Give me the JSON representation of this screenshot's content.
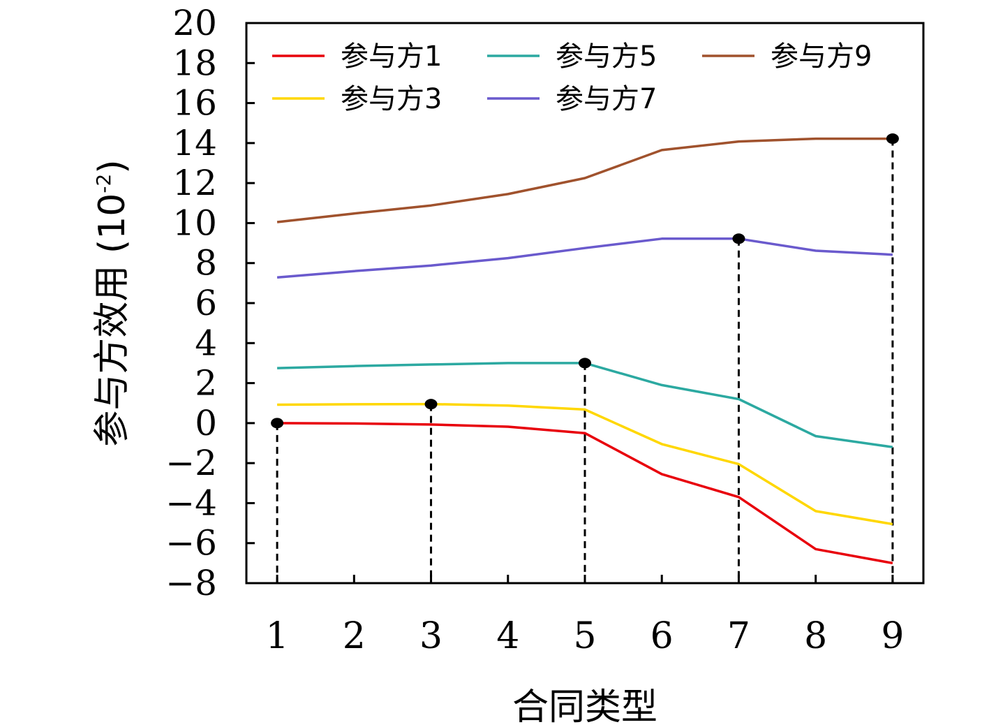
{
  "chart_data": {
    "type": "line",
    "xlabel": "合同类型",
    "ylabel": "参与方效用 (10⁻²)",
    "ylabel_main": "参与方效用 (10",
    "ylabel_exp": "-2",
    "ylabel_close": ")",
    "x": [
      1,
      2,
      3,
      4,
      5,
      6,
      7,
      8,
      9
    ],
    "xlim": [
      0.6,
      9.4
    ],
    "ylim": [
      -8,
      20
    ],
    "x_ticks": [
      "1",
      "2",
      "3",
      "4",
      "5",
      "6",
      "7",
      "8",
      "9"
    ],
    "y_ticks": [
      "−8",
      "−6",
      "−4",
      "−2",
      "0",
      "2",
      "4",
      "6",
      "8",
      "10",
      "12",
      "14",
      "16",
      "18",
      "20"
    ],
    "y_tick_values": [
      -8,
      -6,
      -4,
      -2,
      0,
      2,
      4,
      6,
      8,
      10,
      12,
      14,
      16,
      18,
      20
    ],
    "grid": false,
    "legend_position": "top",
    "series": [
      {
        "name": "参与方1",
        "color": "#e8000b",
        "values": [
          0.0,
          -0.02,
          -0.07,
          -0.18,
          -0.5,
          -2.55,
          -3.7,
          -6.3,
          -7.0
        ]
      },
      {
        "name": "参与方3",
        "color": "#ffd700",
        "values": [
          0.92,
          0.94,
          0.95,
          0.88,
          0.68,
          -1.05,
          -2.05,
          -4.4,
          -5.05
        ]
      },
      {
        "name": "参与方5",
        "color": "#2ca9a1",
        "values": [
          2.75,
          2.85,
          2.93,
          3.0,
          3.0,
          1.9,
          1.2,
          -0.65,
          -1.2
        ]
      },
      {
        "name": "参与方7",
        "color": "#6a5acd",
        "values": [
          7.28,
          7.6,
          7.88,
          8.25,
          8.75,
          9.22,
          9.22,
          8.62,
          8.42
        ]
      },
      {
        "name": "参与方9",
        "color": "#a0522d",
        "values": [
          10.05,
          10.48,
          10.88,
          11.45,
          12.25,
          13.65,
          14.08,
          14.22,
          14.22
        ]
      }
    ],
    "markers": [
      {
        "x": 1,
        "y": 0.0
      },
      {
        "x": 3,
        "y": 0.95
      },
      {
        "x": 5,
        "y": 3.0
      },
      {
        "x": 7,
        "y": 9.22
      },
      {
        "x": 9,
        "y": 14.22
      }
    ]
  }
}
